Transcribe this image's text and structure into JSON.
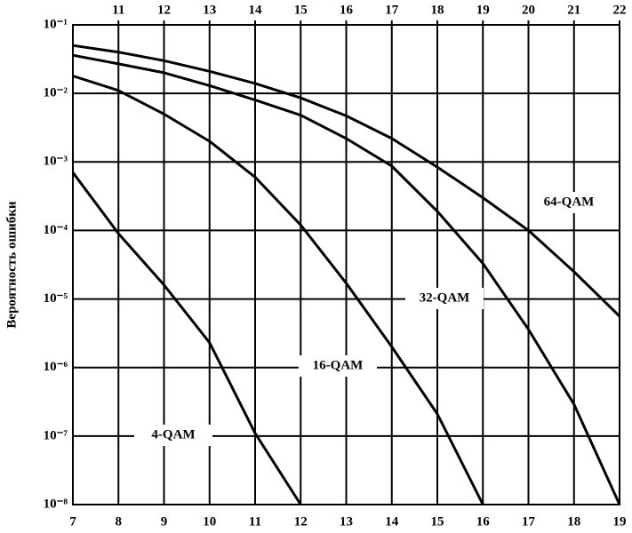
{
  "chart_data": {
    "type": "line",
    "y_label": "Вероятность ошибки",
    "log_y": true,
    "grid": true,
    "color": "#000000",
    "xlim": [
      7,
      19
    ],
    "xticks": [
      7,
      8,
      9,
      10,
      11,
      12,
      13,
      14,
      15,
      16,
      17,
      18,
      19
    ],
    "x2lim": [
      10,
      22
    ],
    "x2ticks": [
      11,
      12,
      13,
      14,
      15,
      16,
      17,
      18,
      19,
      20,
      21,
      22
    ],
    "ylim": [
      1e-08,
      0.1
    ],
    "yticks": [
      {
        "value": 0.1,
        "label": "10⁻¹"
      },
      {
        "value": 0.01,
        "label": "10⁻²"
      },
      {
        "value": 0.001,
        "label": "10⁻³"
      },
      {
        "value": 0.0001,
        "label": "10⁻⁴"
      },
      {
        "value": 1e-05,
        "label": "10⁻⁵"
      },
      {
        "value": 1e-06,
        "label": "10⁻⁶"
      },
      {
        "value": 1e-07,
        "label": "10⁻⁷"
      },
      {
        "value": 1e-08,
        "label": "10⁻⁸"
      }
    ],
    "series": [
      {
        "name": "4-QAM",
        "x": [
          7,
          8,
          9,
          10,
          11,
          12
        ],
        "values": [
          0.0007,
          9e-05,
          1.6e-05,
          2.3e-06,
          1.1e-07,
          1e-08
        ]
      },
      {
        "name": "16-QAM",
        "x": [
          7,
          8,
          9,
          10,
          11,
          12,
          13,
          14,
          15,
          16
        ],
        "values": [
          0.018,
          0.011,
          0.005,
          0.002,
          0.0006,
          0.00012,
          1.7e-05,
          2e-06,
          2.1e-07,
          1e-08
        ]
      },
      {
        "name": "32-QAM",
        "x": [
          7,
          8,
          9,
          10,
          11,
          12,
          13,
          14,
          15,
          16,
          17,
          18,
          19
        ],
        "values": [
          0.036,
          0.027,
          0.02,
          0.013,
          0.008,
          0.0048,
          0.0022,
          0.00087,
          0.00019,
          3.3e-05,
          3.6e-06,
          2.9e-07,
          1e-08
        ]
      },
      {
        "name": "64-QAM",
        "x": [
          7,
          8,
          9,
          10,
          11,
          12,
          13,
          14,
          15,
          16,
          17,
          18,
          19
        ],
        "values": [
          0.05,
          0.04,
          0.03,
          0.021,
          0.014,
          0.0086,
          0.0047,
          0.0022,
          0.00084,
          0.0003,
          0.0001,
          2.5e-05,
          5.6e-06
        ]
      }
    ]
  }
}
